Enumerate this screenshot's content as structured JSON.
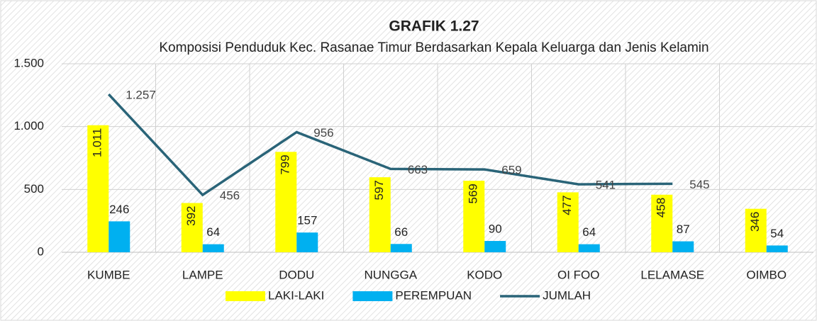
{
  "chart_data": {
    "type": "bar-line",
    "title": "GRAFIK 1.27",
    "subtitle": "Komposisi Penduduk Kec. Rasanae Timur Berdasarkan Kepala Keluarga dan Jenis Kelamin",
    "categories": [
      "KUMBE",
      "LAMPE",
      "DODU",
      "NUNGGA",
      "KODO",
      "OI FOO",
      "LELAMASE",
      "OIMBO"
    ],
    "series": [
      {
        "name": "LAKI-LAKI",
        "type": "bar",
        "color": "#ffff00",
        "values": [
          1011,
          392,
          799,
          597,
          569,
          477,
          458,
          346
        ],
        "value_labels": [
          "1.011",
          "392",
          "799",
          "597",
          "569",
          "477",
          "458",
          "346"
        ]
      },
      {
        "name": "PEREMPUAN",
        "type": "bar",
        "color": "#00b0f0",
        "values": [
          246,
          64,
          157,
          66,
          90,
          64,
          87,
          54
        ]
      },
      {
        "name": "JUMLAH",
        "type": "line",
        "color": "#2a6478",
        "values": [
          1257,
          456,
          956,
          663,
          659,
          541,
          545,
          null
        ],
        "value_labels": [
          "1.257",
          "456",
          "956",
          "663",
          "659",
          "541",
          "545",
          null
        ]
      }
    ],
    "ylim": [
      0,
      1500
    ],
    "yticks": [
      0,
      500,
      {
        "value": 1000,
        "label": "1.000"
      },
      {
        "value": 1500,
        "label": "1.500"
      }
    ],
    "grid": true
  }
}
